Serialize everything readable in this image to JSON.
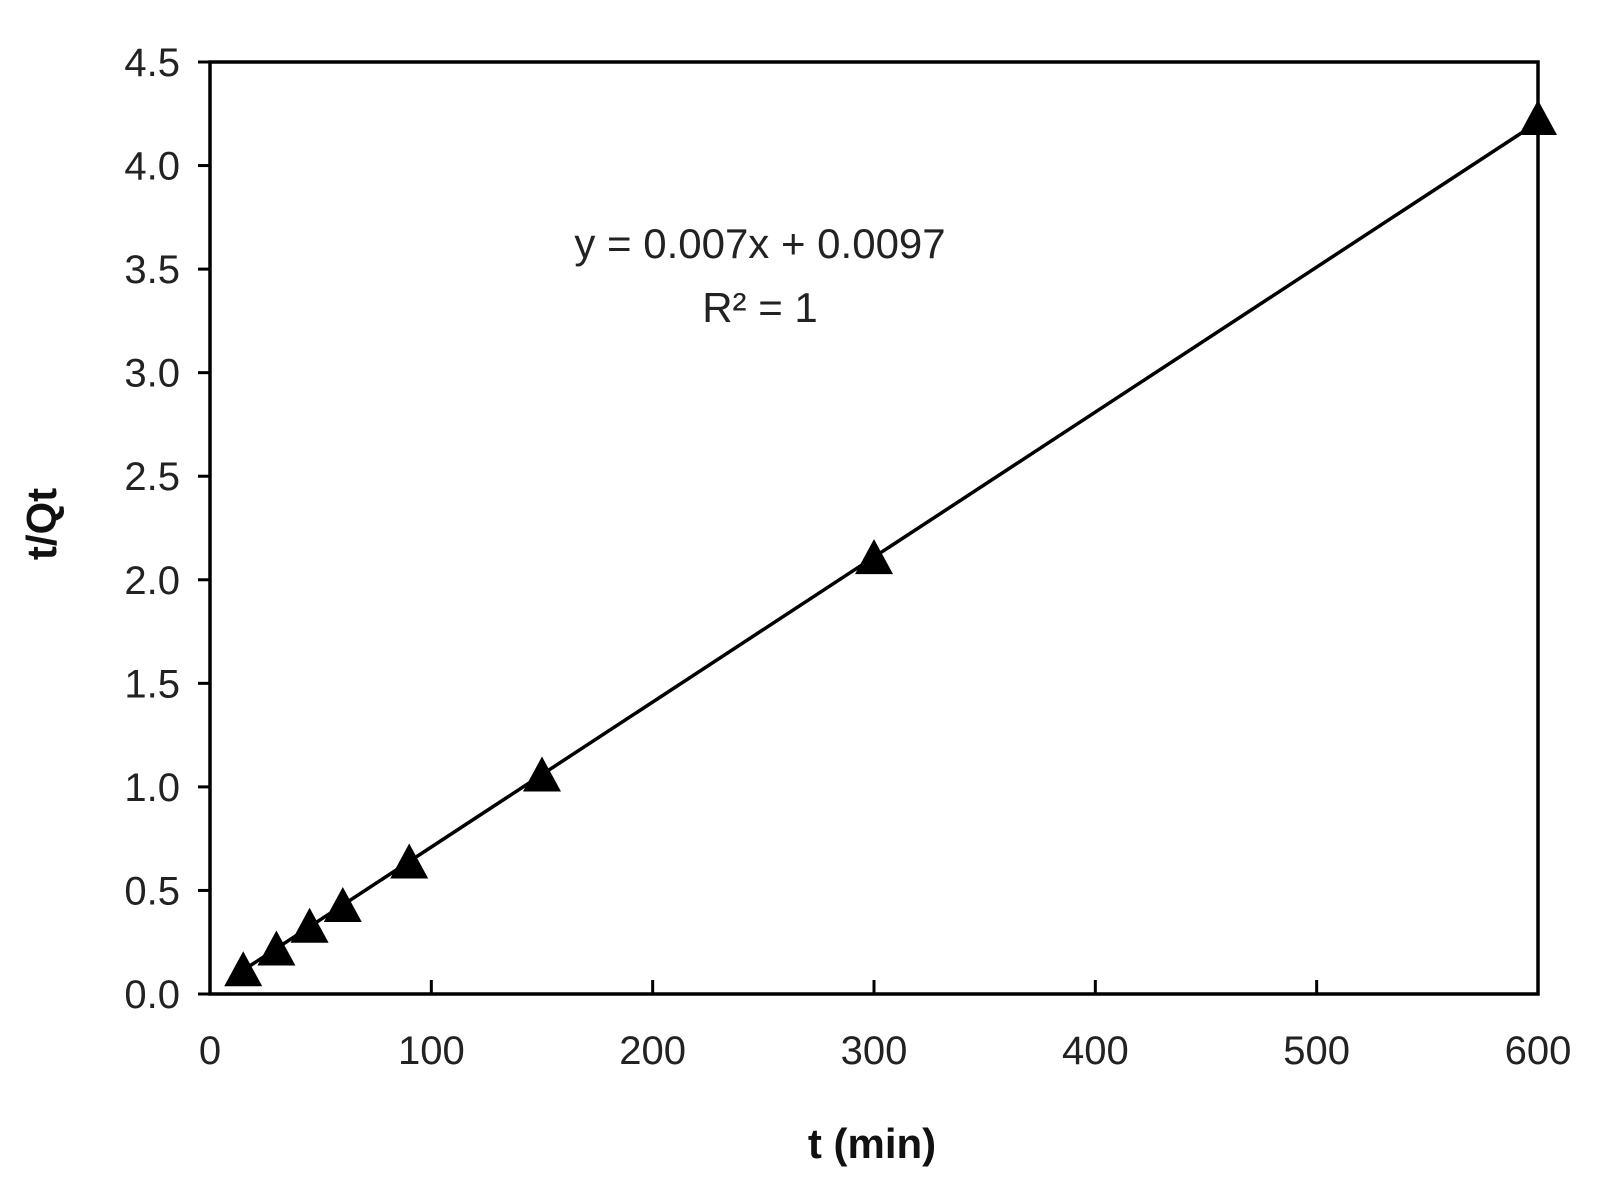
{
  "chart_data": {
    "type": "scatter",
    "xlabel": "t (min)",
    "ylabel": "t/Qt",
    "xlim": [
      0,
      600
    ],
    "ylim": [
      0,
      4.5
    ],
    "x_ticks": [
      "0",
      "100",
      "200",
      "300",
      "400",
      "500",
      "600"
    ],
    "y_ticks": [
      "0.0",
      "0.5",
      "1.0",
      "1.5",
      "2.0",
      "2.5",
      "3.0",
      "3.5",
      "4.0",
      "4.5"
    ],
    "grid": false,
    "legend": "none",
    "marker": "triangle",
    "marker_color": "#000000",
    "line_color": "#000000",
    "series": [
      {
        "x": [
          15,
          30,
          45,
          60,
          90,
          150,
          300,
          600
        ],
        "y": [
          0.11,
          0.21,
          0.32,
          0.42,
          0.63,
          1.05,
          2.1,
          4.22
        ]
      }
    ],
    "trendline": {
      "type": "linear",
      "slope": 0.007,
      "intercept": 0.0097
    },
    "annotations": [
      "y = 0.007x + 0.0097",
      "R² = 1"
    ]
  }
}
